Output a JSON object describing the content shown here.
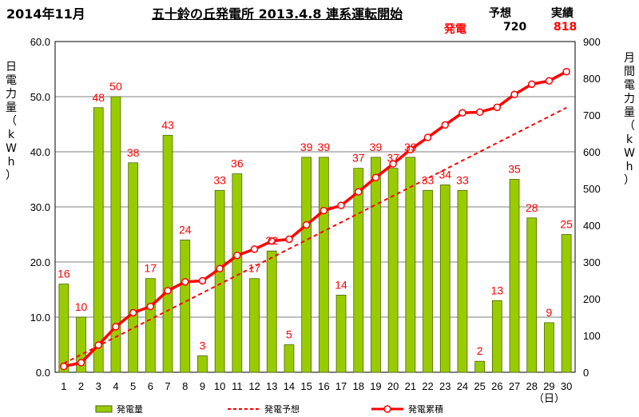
{
  "header": {
    "period": "2014年11月",
    "title": "五十鈴の丘発電所 2013.4.8 連系運転開始",
    "col_forecast": "予想",
    "col_actual": "実績",
    "row_label": "発電",
    "forecast_value": "720",
    "actual_value": "818"
  },
  "colors": {
    "bar": "#99cc00",
    "bar_stroke": "#4d6600",
    "line": "#ff0000",
    "marker_fill": "#ffffff"
  },
  "chart_data": {
    "type": "bar",
    "categories": [
      "1",
      "2",
      "3",
      "4",
      "5",
      "6",
      "7",
      "8",
      "9",
      "10",
      "11",
      "12",
      "13",
      "14",
      "15",
      "16",
      "17",
      "18",
      "19",
      "20",
      "21",
      "22",
      "23",
      "24",
      "25",
      "26",
      "27",
      "28",
      "29",
      "30"
    ],
    "x_unit_label": "（日）",
    "ylabel_left": "日電力量（kWh）",
    "ylabel_right": "月間電力量（kWh）",
    "ylim_left": [
      0,
      60
    ],
    "ylim_right": [
      0,
      900
    ],
    "yticks_left": [
      "0.0",
      "10.0",
      "20.0",
      "30.0",
      "40.0",
      "50.0",
      "60.0"
    ],
    "yticks_right": [
      "0",
      "100",
      "200",
      "300",
      "400",
      "500",
      "600",
      "700",
      "800",
      "900"
    ],
    "legend_position": "bottom",
    "series": [
      {
        "name": "発電量",
        "type": "bar",
        "axis": "left",
        "values": [
          16,
          10,
          48,
          50,
          38,
          17,
          43,
          24,
          3,
          33,
          36,
          17,
          22,
          5,
          39,
          39,
          14,
          37,
          39,
          37,
          39,
          33,
          34,
          33,
          2,
          13,
          35,
          28,
          9,
          25
        ],
        "labels": [
          "16",
          "10",
          "48",
          "50",
          "38",
          "17",
          "43",
          "24",
          "3",
          "33",
          "36",
          "17",
          "22",
          "5",
          "39",
          "39",
          "14",
          "37",
          "39",
          "37",
          "39",
          "33",
          "34",
          "33",
          "2",
          "13",
          "35",
          "28",
          "9",
          "25"
        ]
      },
      {
        "name": "発電予想",
        "type": "line",
        "style": "dashed",
        "axis": "right",
        "values": [
          24,
          48,
          72,
          96,
          120,
          144,
          168,
          192,
          216,
          240,
          264,
          288,
          312,
          336,
          360,
          384,
          408,
          432,
          456,
          480,
          504,
          528,
          552,
          576,
          600,
          624,
          648,
          672,
          696,
          720
        ]
      },
      {
        "name": "発電累積",
        "type": "line",
        "style": "solid-with-markers",
        "axis": "right",
        "values": [
          16,
          26,
          74,
          124,
          162,
          179,
          222,
          246,
          249,
          282,
          318,
          335,
          357,
          362,
          401,
          440,
          454,
          491,
          530,
          567,
          606,
          639,
          673,
          706,
          708,
          721,
          756,
          784,
          793,
          818
        ]
      }
    ]
  }
}
